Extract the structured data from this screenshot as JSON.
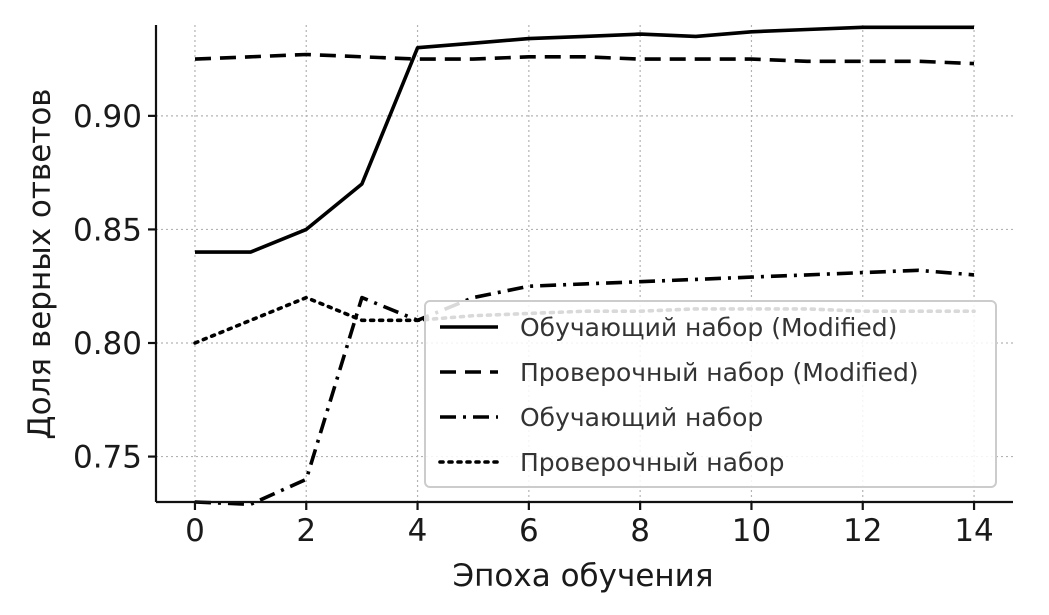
{
  "chart_data": {
    "type": "line",
    "title": "",
    "xlabel": "Эпоха обучения",
    "ylabel": "Доля верных ответов",
    "x": [
      0,
      1,
      2,
      3,
      4,
      5,
      6,
      7,
      8,
      9,
      10,
      11,
      12,
      13,
      14
    ],
    "xlim": [
      -0.7,
      14.7
    ],
    "ylim": [
      0.73,
      0.94
    ],
    "xticks": [
      0,
      2,
      4,
      6,
      8,
      10,
      12,
      14
    ],
    "yticks": [
      0.75,
      0.8,
      0.85,
      0.9
    ],
    "xtick_labels": [
      "0",
      "2",
      "4",
      "6",
      "8",
      "10",
      "12",
      "14"
    ],
    "ytick_labels": [
      "0.75",
      "0.80",
      "0.85",
      "0.90"
    ],
    "grid": true,
    "legend_position": "lower-right",
    "color": "#000000",
    "series": [
      {
        "name": "Обучающий набор (Modified)",
        "style": "solid",
        "values": [
          0.84,
          0.84,
          0.85,
          0.87,
          0.93,
          0.932,
          0.934,
          0.935,
          0.936,
          0.935,
          0.937,
          0.938,
          0.939,
          0.939,
          0.939
        ]
      },
      {
        "name": "Проверочный набор (Modified)",
        "style": "dashed",
        "values": [
          0.925,
          0.926,
          0.927,
          0.926,
          0.925,
          0.925,
          0.926,
          0.926,
          0.925,
          0.925,
          0.925,
          0.924,
          0.924,
          0.924,
          0.923
        ]
      },
      {
        "name": "Обучающий набор",
        "style": "dashdot",
        "values": [
          0.73,
          0.729,
          0.74,
          0.82,
          0.81,
          0.82,
          0.825,
          0.826,
          0.827,
          0.828,
          0.829,
          0.83,
          0.831,
          0.832,
          0.83
        ]
      },
      {
        "name": "Проверочный набор",
        "style": "dotted",
        "values": [
          0.8,
          0.81,
          0.82,
          0.81,
          0.81,
          0.812,
          0.813,
          0.814,
          0.814,
          0.815,
          0.815,
          0.815,
          0.814,
          0.814,
          0.814
        ]
      }
    ]
  }
}
